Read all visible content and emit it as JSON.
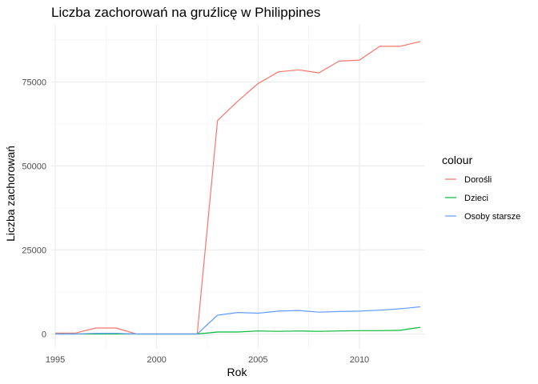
{
  "chart_data": {
    "type": "line",
    "title": "Liczba zachorowań na gruźlicę w Philippines",
    "xlabel": "Rok",
    "ylabel": "Liczba zachorowań",
    "xlim": [
      1994.8,
      2013.2
    ],
    "ylim": [
      -4400,
      92000
    ],
    "x_ticks": [
      1995,
      2000,
      2005,
      2010
    ],
    "y_ticks": [
      0,
      25000,
      50000,
      75000
    ],
    "y_tick_labels": [
      "0",
      "25000",
      "50000",
      "75000"
    ],
    "grid": true,
    "legend_title": "colour",
    "legend_position": "right",
    "x": [
      1995,
      1996,
      1997,
      1998,
      1999,
      2000,
      2001,
      2002,
      2003,
      2004,
      2005,
      2006,
      2007,
      2008,
      2009,
      2010,
      2011,
      2012,
      2013
    ],
    "series": [
      {
        "name": "Dorośli",
        "color": "#F8766D",
        "values": [
          300,
          300,
          1800,
          1800,
          0,
          0,
          0,
          0,
          63500,
          69300,
          74500,
          78000,
          78600,
          77700,
          81200,
          81500,
          85600,
          85600,
          87000
        ]
      },
      {
        "name": "Dzieci",
        "color": "#00BA38",
        "values": [
          0,
          0,
          0,
          0,
          0,
          0,
          0,
          0,
          600,
          600,
          900,
          800,
          900,
          800,
          900,
          1000,
          1000,
          1100,
          2000
        ]
      },
      {
        "name": "Osoby starsze",
        "color": "#619CFF",
        "values": [
          0,
          0,
          200,
          200,
          0,
          0,
          0,
          0,
          5600,
          6400,
          6200,
          6800,
          7000,
          6500,
          6700,
          6800,
          7100,
          7500,
          8100
        ]
      }
    ]
  }
}
